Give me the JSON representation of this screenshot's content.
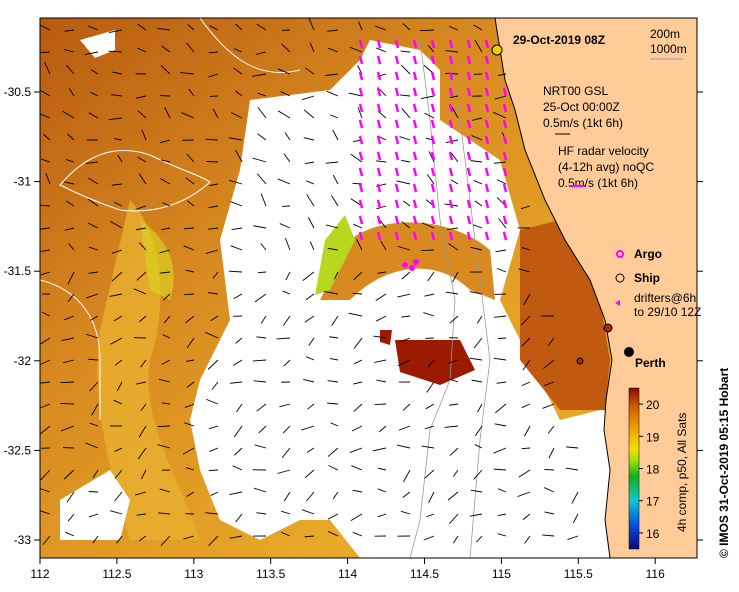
{
  "title": "29-Oct-2019 08Z",
  "depth_legend": {
    "contour1": "200m",
    "contour2": "1000m"
  },
  "model_legend": {
    "line1": "NRT00 GSL",
    "line2": "25-Oct 00:00Z",
    "line3": "0.5m/s (1kt 6h)"
  },
  "radar_legend": {
    "line1": "HF radar velocity",
    "line2": "(4-12h avg) noQC",
    "line3": "0.5m/s (1kt 6h)"
  },
  "markers": {
    "argo": "Argo",
    "ship": "Ship",
    "drifters1": "drifters@6h",
    "drifters2": "to 29/10 12Z"
  },
  "city": "Perth",
  "colorbar": {
    "label": "4h comp, p50, All Sats",
    "ticks": [
      "20",
      "19",
      "18",
      "17",
      "16"
    ],
    "min": 15.5,
    "max": 20.5
  },
  "credit": "© IMOS 31-Oct-2019 05:15 Hobart",
  "axes": {
    "x_ticks": [
      "112",
      "112.5",
      "113",
      "113.5",
      "114",
      "114.5",
      "115",
      "115.5",
      "116"
    ],
    "y_ticks": [
      "-30.5",
      "-31",
      "-31.5",
      "-32",
      "-32.5",
      "-33"
    ]
  },
  "colors": {
    "land": "#FFCC99",
    "warm": "#C8620A",
    "mid": "#E8A020",
    "hot": "#9B1A00",
    "radar": "#FF00FF"
  }
}
